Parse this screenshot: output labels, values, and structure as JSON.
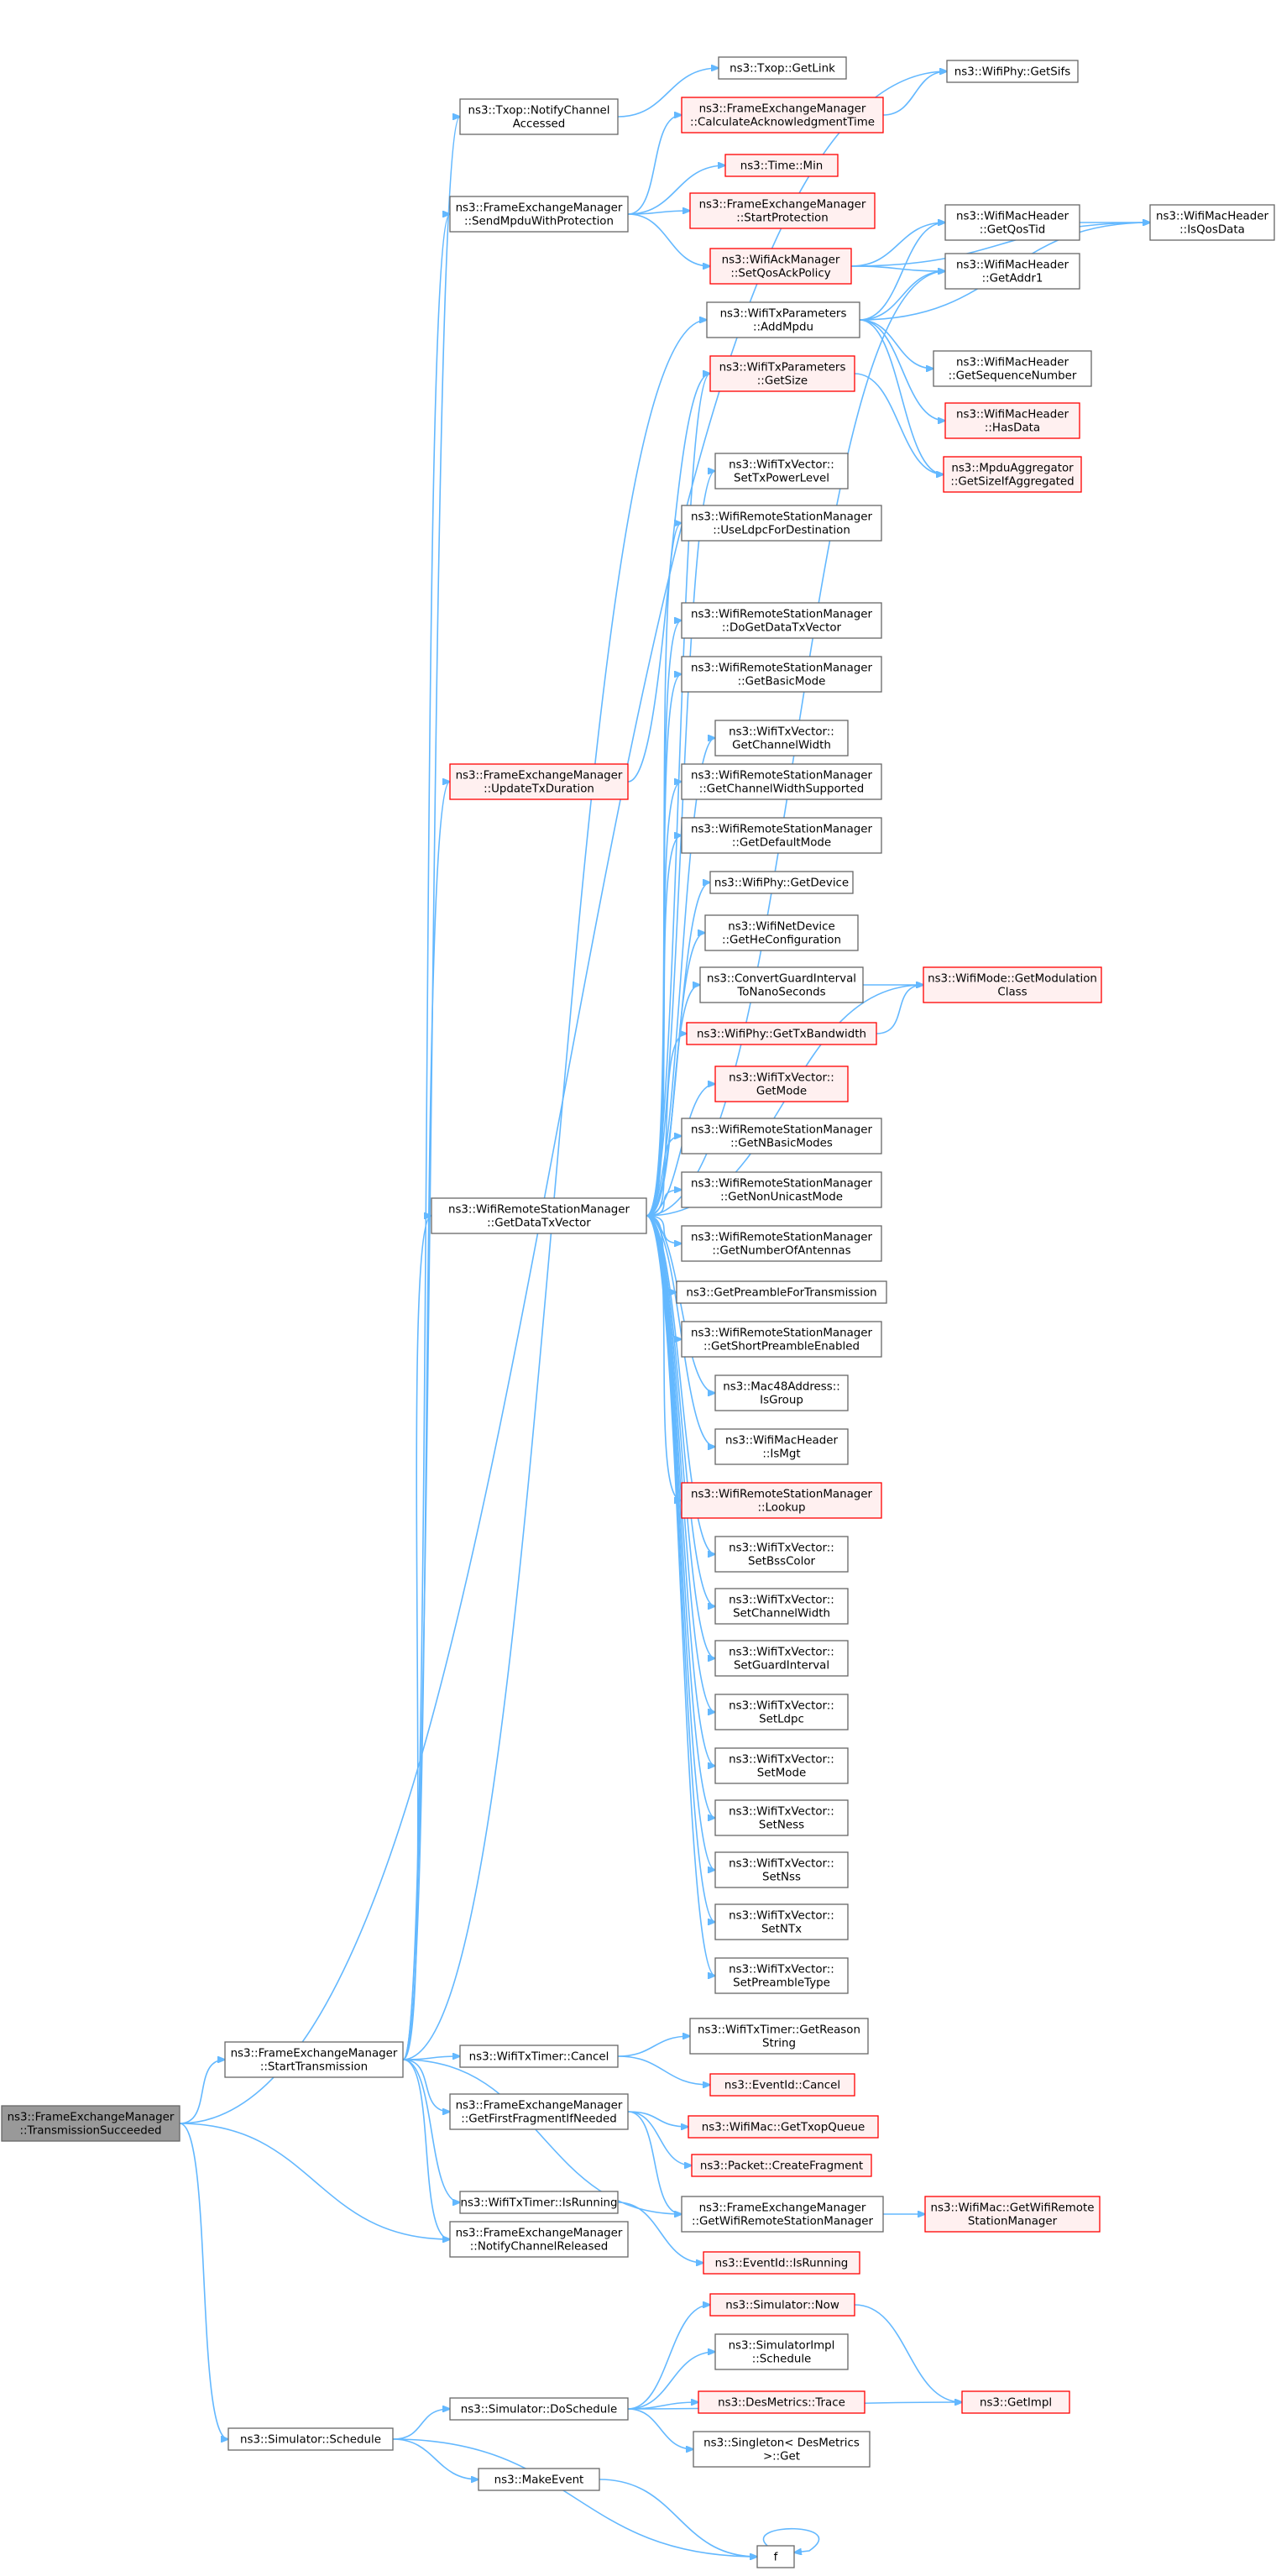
{
  "colors": {
    "edge": "#63b8ff",
    "normal_border": "#666666",
    "red_border": "#ff0000",
    "red_fill": "#fff0f0",
    "root_fill": "#999999"
  },
  "nodes": [
    {
      "id": "tx_succeeded",
      "style": "root",
      "lines": [
        "ns3::FrameExchangeManager",
        "::TransmissionSucceeded"
      ]
    },
    {
      "id": "start_tx",
      "style": "normal",
      "lines": [
        "ns3::FrameExchangeManager",
        "::StartTransmission"
      ]
    },
    {
      "id": "sim_schedule",
      "style": "normal",
      "lines": [
        "ns3::Simulator::Schedule"
      ]
    },
    {
      "id": "notify_accessed",
      "style": "normal",
      "lines": [
        "ns3::Txop::NotifyChannel",
        "Accessed"
      ]
    },
    {
      "id": "send_mpdu",
      "style": "normal",
      "lines": [
        "ns3::FrameExchangeManager",
        "::SendMpduWithProtection"
      ]
    },
    {
      "id": "update_txdur",
      "style": "red",
      "lines": [
        "ns3::FrameExchangeManager",
        "::UpdateTxDuration"
      ]
    },
    {
      "id": "get_datatxv",
      "style": "normal",
      "lines": [
        "ns3::WifiRemoteStationManager",
        "::GetDataTxVector"
      ]
    },
    {
      "id": "timer_cancel",
      "style": "normal",
      "lines": [
        "ns3::WifiTxTimer::Cancel"
      ]
    },
    {
      "id": "get_first_frag",
      "style": "normal",
      "lines": [
        "ns3::FrameExchangeManager",
        "::GetFirstFragmentIfNeeded"
      ]
    },
    {
      "id": "timer_running",
      "style": "normal",
      "lines": [
        "ns3::WifiTxTimer::IsRunning"
      ]
    },
    {
      "id": "notify_released",
      "style": "normal",
      "lines": [
        "ns3::FrameExchangeManager",
        "::NotifyChannelReleased"
      ]
    },
    {
      "id": "txop_getlink",
      "style": "normal",
      "lines": [
        "ns3::Txop::GetLink"
      ]
    },
    {
      "id": "calc_ack",
      "style": "red",
      "lines": [
        "ns3::FrameExchangeManager",
        "::CalculateAcknowledgmentTime"
      ]
    },
    {
      "id": "time_min",
      "style": "red",
      "lines": [
        "ns3::Time::Min"
      ]
    },
    {
      "id": "start_protection",
      "style": "red",
      "lines": [
        "ns3::FrameExchangeManager",
        "::StartProtection"
      ]
    },
    {
      "id": "set_qos_ack",
      "style": "red",
      "lines": [
        "ns3::WifiAckManager",
        "::SetQosAckPolicy"
      ]
    },
    {
      "id": "add_mpdu",
      "style": "normal",
      "lines": [
        "ns3::WifiTxParameters",
        "::AddMpdu"
      ]
    },
    {
      "id": "get_size",
      "style": "red",
      "lines": [
        "ns3::WifiTxParameters",
        "::GetSize"
      ]
    },
    {
      "id": "set_txpower",
      "style": "normal",
      "lines": [
        "ns3::WifiTxVector::",
        "SetTxPowerLevel"
      ]
    },
    {
      "id": "use_ldpc",
      "style": "normal",
      "lines": [
        "ns3::WifiRemoteStationManager",
        "::UseLdpcForDestination"
      ]
    },
    {
      "id": "do_get_data",
      "style": "normal",
      "lines": [
        "ns3::WifiRemoteStationManager",
        "::DoGetDataTxVector"
      ]
    },
    {
      "id": "get_basic_mode",
      "style": "normal",
      "lines": [
        "ns3::WifiRemoteStationManager",
        "::GetBasicMode"
      ]
    },
    {
      "id": "get_ch_width",
      "style": "normal",
      "lines": [
        "ns3::WifiTxVector::",
        "GetChannelWidth"
      ]
    },
    {
      "id": "get_ch_width_sup",
      "style": "normal",
      "lines": [
        "ns3::WifiRemoteStationManager",
        "::GetChannelWidthSupported"
      ]
    },
    {
      "id": "get_default_mode",
      "style": "normal",
      "lines": [
        "ns3::WifiRemoteStationManager",
        "::GetDefaultMode"
      ]
    },
    {
      "id": "get_device",
      "style": "normal",
      "lines": [
        "ns3::WifiPhy::GetDevice"
      ]
    },
    {
      "id": "get_he_config",
      "style": "normal",
      "lines": [
        "ns3::WifiNetDevice",
        "::GetHeConfiguration"
      ]
    },
    {
      "id": "convert_gi",
      "style": "normal",
      "lines": [
        "ns3::ConvertGuardInterval",
        "ToNanoSeconds"
      ]
    },
    {
      "id": "get_tx_bw",
      "style": "red",
      "lines": [
        "ns3::WifiPhy::GetTxBandwidth"
      ]
    },
    {
      "id": "get_mode",
      "style": "red",
      "lines": [
        "ns3::WifiTxVector::",
        "GetMode"
      ]
    },
    {
      "id": "get_n_basic",
      "style": "normal",
      "lines": [
        "ns3::WifiRemoteStationManager",
        "::GetNBasicModes"
      ]
    },
    {
      "id": "get_non_unicast",
      "style": "normal",
      "lines": [
        "ns3::WifiRemoteStationManager",
        "::GetNonUnicastMode"
      ]
    },
    {
      "id": "get_n_antennas",
      "style": "normal",
      "lines": [
        "ns3::WifiRemoteStationManager",
        "::GetNumberOfAntennas"
      ]
    },
    {
      "id": "get_preamble",
      "style": "normal",
      "lines": [
        "ns3::GetPreambleForTransmission"
      ]
    },
    {
      "id": "get_short_pre",
      "style": "normal",
      "lines": [
        "ns3::WifiRemoteStationManager",
        "::GetShortPreambleEnabled"
      ]
    },
    {
      "id": "is_group",
      "style": "normal",
      "lines": [
        "ns3::Mac48Address::",
        "IsGroup"
      ]
    },
    {
      "id": "is_mgt",
      "style": "normal",
      "lines": [
        "ns3::WifiMacHeader",
        "::IsMgt"
      ]
    },
    {
      "id": "lookup",
      "style": "red",
      "lines": [
        "ns3::WifiRemoteStationManager",
        "::Lookup"
      ]
    },
    {
      "id": "set_bss_color",
      "style": "normal",
      "lines": [
        "ns3::WifiTxVector::",
        "SetBssColor"
      ]
    },
    {
      "id": "set_ch_width",
      "style": "normal",
      "lines": [
        "ns3::WifiTxVector::",
        "SetChannelWidth"
      ]
    },
    {
      "id": "set_gi",
      "style": "normal",
      "lines": [
        "ns3::WifiTxVector::",
        "SetGuardInterval"
      ]
    },
    {
      "id": "set_ldpc",
      "style": "normal",
      "lines": [
        "ns3::WifiTxVector::",
        "SetLdpc"
      ]
    },
    {
      "id": "set_mode",
      "style": "normal",
      "lines": [
        "ns3::WifiTxVector::",
        "SetMode"
      ]
    },
    {
      "id": "set_ness",
      "style": "normal",
      "lines": [
        "ns3::WifiTxVector::",
        "SetNess"
      ]
    },
    {
      "id": "set_nss",
      "style": "normal",
      "lines": [
        "ns3::WifiTxVector::",
        "SetNss"
      ]
    },
    {
      "id": "set_ntx",
      "style": "normal",
      "lines": [
        "ns3::WifiTxVector::",
        "SetNTx"
      ]
    },
    {
      "id": "set_preamble",
      "style": "normal",
      "lines": [
        "ns3::WifiTxVector::",
        "SetPreambleType"
      ]
    },
    {
      "id": "get_reason",
      "style": "normal",
      "lines": [
        "ns3::WifiTxTimer::GetReason",
        "String"
      ]
    },
    {
      "id": "event_cancel",
      "style": "red",
      "lines": [
        "ns3::EventId::Cancel"
      ]
    },
    {
      "id": "get_txop_queue",
      "style": "red",
      "lines": [
        "ns3::WifiMac::GetTxopQueue"
      ]
    },
    {
      "id": "create_frag",
      "style": "red",
      "lines": [
        "ns3::Packet::CreateFragment"
      ]
    },
    {
      "id": "get_wrsm",
      "style": "normal",
      "lines": [
        "ns3::FrameExchangeManager",
        "::GetWifiRemoteStationManager"
      ]
    },
    {
      "id": "event_running",
      "style": "red",
      "lines": [
        "ns3::EventId::IsRunning"
      ]
    },
    {
      "id": "sim_now",
      "style": "red",
      "lines": [
        "ns3::Simulator::Now"
      ]
    },
    {
      "id": "simimpl_schedule",
      "style": "normal",
      "lines": [
        "ns3::SimulatorImpl",
        "::Schedule"
      ]
    },
    {
      "id": "sim_doschedule",
      "style": "normal",
      "lines": [
        "ns3::Simulator::DoSchedule"
      ]
    },
    {
      "id": "desmetrics_trace",
      "style": "red",
      "lines": [
        "ns3::DesMetrics::Trace"
      ]
    },
    {
      "id": "singleton_get",
      "style": "normal",
      "lines": [
        "ns3::Singleton< DesMetrics",
        ">::Get"
      ]
    },
    {
      "id": "make_event",
      "style": "normal",
      "lines": [
        "ns3::MakeEvent"
      ]
    },
    {
      "id": "f",
      "style": "normal",
      "lines": [
        "f"
      ]
    },
    {
      "id": "get_sifs",
      "style": "normal",
      "lines": [
        "ns3::WifiPhy::GetSifs"
      ]
    },
    {
      "id": "get_qos_tid",
      "style": "normal",
      "lines": [
        "ns3::WifiMacHeader",
        "::GetQosTid"
      ]
    },
    {
      "id": "get_addr1",
      "style": "normal",
      "lines": [
        "ns3::WifiMacHeader",
        "::GetAddr1"
      ]
    },
    {
      "id": "get_seq_num",
      "style": "normal",
      "lines": [
        "ns3::WifiMacHeader",
        "::GetSequenceNumber"
      ]
    },
    {
      "id": "has_data",
      "style": "red",
      "lines": [
        "ns3::WifiMacHeader",
        "::HasData"
      ]
    },
    {
      "id": "get_size_agg",
      "style": "red",
      "lines": [
        "ns3::MpduAggregator",
        "::GetSizeIfAggregated"
      ]
    },
    {
      "id": "get_mod_class",
      "style": "red",
      "lines": [
        "ns3::WifiMode::GetModulation",
        "Class"
      ]
    },
    {
      "id": "get_wifi_rsm",
      "style": "red",
      "lines": [
        "ns3::WifiMac::GetWifiRemote",
        "StationManager"
      ]
    },
    {
      "id": "get_impl",
      "style": "red",
      "lines": [
        "ns3::GetImpl"
      ]
    },
    {
      "id": "is_qos_data",
      "style": "normal",
      "lines": [
        "ns3::WifiMacHeader",
        "::IsQosData"
      ]
    }
  ],
  "edges": [
    [
      "tx_succeeded",
      "start_tx"
    ],
    [
      "tx_succeeded",
      "notify_released"
    ],
    [
      "tx_succeeded",
      "sim_schedule"
    ],
    [
      "tx_succeeded",
      "get_sifs"
    ],
    [
      "start_tx",
      "notify_accessed"
    ],
    [
      "start_tx",
      "send_mpdu"
    ],
    [
      "start_tx",
      "update_txdur"
    ],
    [
      "start_tx",
      "get_datatxv"
    ],
    [
      "start_tx",
      "timer_cancel"
    ],
    [
      "start_tx",
      "get_first_frag"
    ],
    [
      "start_tx",
      "timer_running"
    ],
    [
      "start_tx",
      "notify_released"
    ],
    [
      "start_tx",
      "get_wrsm"
    ],
    [
      "start_tx",
      "add_mpdu"
    ],
    [
      "notify_accessed",
      "txop_getlink"
    ],
    [
      "send_mpdu",
      "calc_ack"
    ],
    [
      "send_mpdu",
      "time_min"
    ],
    [
      "send_mpdu",
      "start_protection"
    ],
    [
      "send_mpdu",
      "set_qos_ack"
    ],
    [
      "calc_ack",
      "get_sifs"
    ],
    [
      "set_qos_ack",
      "get_qos_tid"
    ],
    [
      "set_qos_ack",
      "get_addr1"
    ],
    [
      "set_qos_ack",
      "is_qos_data"
    ],
    [
      "update_txdur",
      "get_size"
    ],
    [
      "add_mpdu",
      "get_qos_tid"
    ],
    [
      "add_mpdu",
      "get_addr1"
    ],
    [
      "add_mpdu",
      "is_qos_data"
    ],
    [
      "add_mpdu",
      "get_seq_num"
    ],
    [
      "add_mpdu",
      "has_data"
    ],
    [
      "add_mpdu",
      "get_size_agg"
    ],
    [
      "get_size",
      "get_size_agg"
    ],
    [
      "get_qos_tid",
      "is_qos_data"
    ],
    [
      "get_datatxv",
      "get_size"
    ],
    [
      "get_datatxv",
      "get_addr1"
    ],
    [
      "get_datatxv",
      "set_txpower"
    ],
    [
      "get_datatxv",
      "use_ldpc"
    ],
    [
      "get_datatxv",
      "get_mod_class"
    ],
    [
      "get_datatxv",
      "do_get_data"
    ],
    [
      "get_datatxv",
      "get_basic_mode"
    ],
    [
      "get_datatxv",
      "get_ch_width"
    ],
    [
      "get_datatxv",
      "get_ch_width_sup"
    ],
    [
      "get_datatxv",
      "get_default_mode"
    ],
    [
      "get_datatxv",
      "get_device"
    ],
    [
      "get_datatxv",
      "get_he_config"
    ],
    [
      "get_datatxv",
      "convert_gi"
    ],
    [
      "get_datatxv",
      "get_tx_bw"
    ],
    [
      "get_datatxv",
      "get_mode"
    ],
    [
      "get_datatxv",
      "get_n_basic"
    ],
    [
      "get_datatxv",
      "get_non_unicast"
    ],
    [
      "get_datatxv",
      "get_n_antennas"
    ],
    [
      "get_datatxv",
      "get_preamble"
    ],
    [
      "get_datatxv",
      "get_short_pre"
    ],
    [
      "get_datatxv",
      "is_group"
    ],
    [
      "get_datatxv",
      "is_mgt"
    ],
    [
      "get_datatxv",
      "lookup"
    ],
    [
      "get_datatxv",
      "set_bss_color"
    ],
    [
      "get_datatxv",
      "set_ch_width"
    ],
    [
      "get_datatxv",
      "set_gi"
    ],
    [
      "get_datatxv",
      "set_ldpc"
    ],
    [
      "get_datatxv",
      "set_mode"
    ],
    [
      "get_datatxv",
      "set_ness"
    ],
    [
      "get_datatxv",
      "set_nss"
    ],
    [
      "get_datatxv",
      "set_ntx"
    ],
    [
      "get_datatxv",
      "set_preamble"
    ],
    [
      "convert_gi",
      "get_mod_class"
    ],
    [
      "get_tx_bw",
      "get_mod_class"
    ],
    [
      "timer_cancel",
      "get_reason"
    ],
    [
      "timer_cancel",
      "event_cancel"
    ],
    [
      "get_first_frag",
      "get_txop_queue"
    ],
    [
      "get_first_frag",
      "create_frag"
    ],
    [
      "get_first_frag",
      "get_wrsm"
    ],
    [
      "get_wrsm",
      "get_wifi_rsm"
    ],
    [
      "timer_running",
      "event_running"
    ],
    [
      "sim_schedule",
      "sim_doschedule"
    ],
    [
      "sim_schedule",
      "make_event"
    ],
    [
      "sim_schedule",
      "f"
    ],
    [
      "sim_doschedule",
      "sim_now"
    ],
    [
      "sim_doschedule",
      "simimpl_schedule"
    ],
    [
      "sim_doschedule",
      "desmetrics_trace"
    ],
    [
      "sim_doschedule",
      "singleton_get"
    ],
    [
      "sim_doschedule",
      "get_impl"
    ],
    [
      "sim_now",
      "get_impl"
    ],
    [
      "make_event",
      "f"
    ],
    [
      "f",
      "f"
    ]
  ]
}
